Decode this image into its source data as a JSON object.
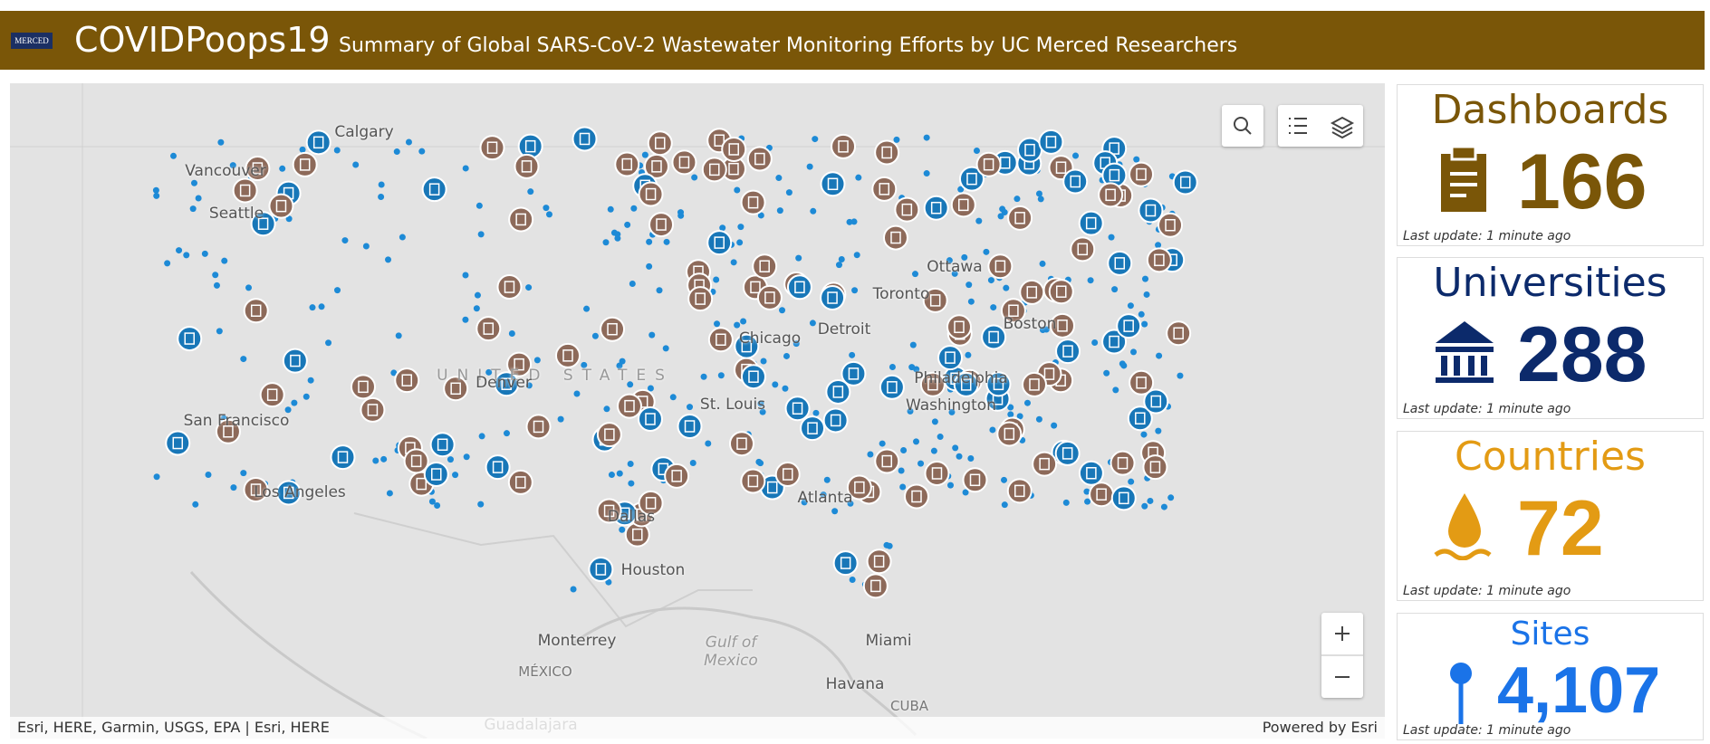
{
  "header": {
    "logo": "MERCED",
    "title": "COVIDPoops19",
    "subtitle": "Summary of Global SARS-CoV-2 Wastewater Monitoring Efforts by UC Merced Researchers"
  },
  "map": {
    "labels": [
      "Calgary",
      "Vancouver",
      "Seattle",
      "UNITED STATES",
      "Denver",
      "San Francisco",
      "Los Angeles",
      "Dallas",
      "Houston",
      "Monterrey",
      "MÉXICO",
      "Gulf of Mexico",
      "Havana",
      "CUBA",
      "Miami",
      "Atlanta",
      "St. Louis",
      "Chicago",
      "Detroit",
      "Toronto",
      "Ottawa",
      "Boston",
      "Philadelphia",
      "Washington",
      "Guadalajara"
    ],
    "attribution": "Esri, HERE, Garmin, USGS, EPA | Esri, HERE",
    "powered": "Powered by Esri"
  },
  "indicators": [
    {
      "title": "Dashboards",
      "value": "166",
      "update": "Last update: 1 minute ago"
    },
    {
      "title": "Universities",
      "value": "288",
      "update": "Last update: 1 minute ago"
    },
    {
      "title": "Countries",
      "value": "72",
      "update": "Last update: 1 minute ago"
    },
    {
      "title": "Sites",
      "value": "4,107",
      "update": "Last update: 1 minute ago"
    }
  ]
}
